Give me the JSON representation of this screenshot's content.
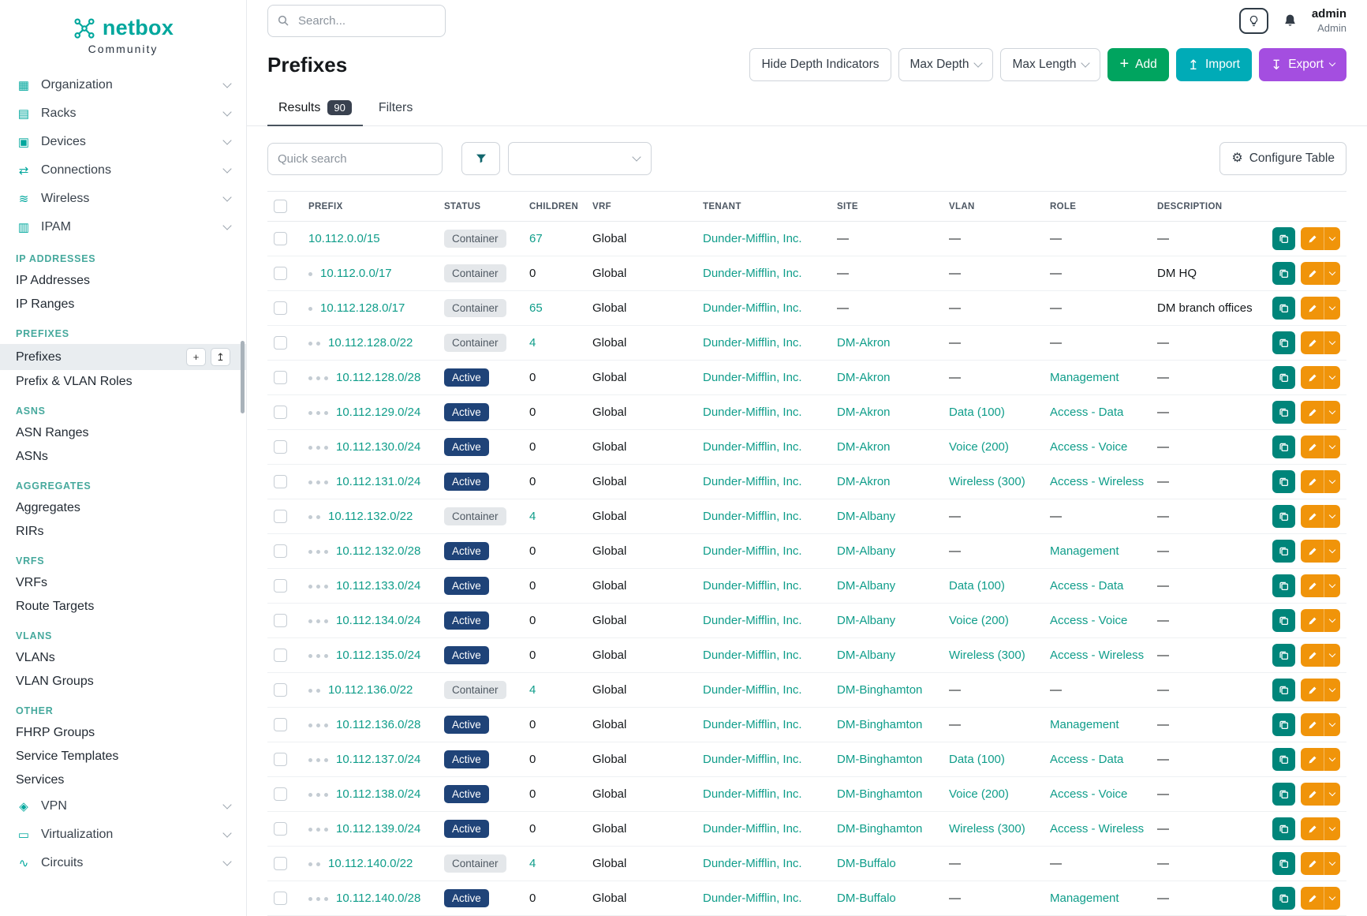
{
  "brand": {
    "name": "netbox",
    "tagline": "Community"
  },
  "topbar": {
    "search_placeholder": "Search...",
    "user_name": "admin",
    "user_role": "Admin"
  },
  "sidebar": {
    "menu": [
      {
        "type": "top",
        "label": "Organization",
        "icon": "building-icon"
      },
      {
        "type": "top",
        "label": "Racks",
        "icon": "rack-icon"
      },
      {
        "type": "top",
        "label": "Devices",
        "icon": "device-icon"
      },
      {
        "type": "top",
        "label": "Connections",
        "icon": "connection-icon"
      },
      {
        "type": "top",
        "label": "Wireless",
        "icon": "wireless-icon"
      },
      {
        "type": "top",
        "label": "IPAM",
        "icon": "ipam-icon"
      },
      {
        "type": "section",
        "label": "IP ADDRESSES"
      },
      {
        "type": "link",
        "label": "IP Addresses"
      },
      {
        "type": "link",
        "label": "IP Ranges"
      },
      {
        "type": "section",
        "label": "PREFIXES"
      },
      {
        "type": "link",
        "label": "Prefixes",
        "active": true
      },
      {
        "type": "link",
        "label": "Prefix & VLAN Roles"
      },
      {
        "type": "section",
        "label": "ASNS"
      },
      {
        "type": "link",
        "label": "ASN Ranges"
      },
      {
        "type": "link",
        "label": "ASNs"
      },
      {
        "type": "section",
        "label": "AGGREGATES"
      },
      {
        "type": "link",
        "label": "Aggregates"
      },
      {
        "type": "link",
        "label": "RIRs"
      },
      {
        "type": "section",
        "label": "VRFS"
      },
      {
        "type": "link",
        "label": "VRFs"
      },
      {
        "type": "link",
        "label": "Route Targets"
      },
      {
        "type": "section",
        "label": "VLANS"
      },
      {
        "type": "link",
        "label": "VLANs"
      },
      {
        "type": "link",
        "label": "VLAN Groups"
      },
      {
        "type": "section",
        "label": "OTHER"
      },
      {
        "type": "link",
        "label": "FHRP Groups"
      },
      {
        "type": "link",
        "label": "Service Templates"
      },
      {
        "type": "link",
        "label": "Services"
      },
      {
        "type": "top",
        "label": "VPN",
        "icon": "vpn-icon"
      },
      {
        "type": "top",
        "label": "Virtualization",
        "icon": "virtualization-icon"
      },
      {
        "type": "top",
        "label": "Circuits",
        "icon": "circuit-icon"
      }
    ]
  },
  "page": {
    "title": "Prefixes",
    "actions": {
      "hide_depth": "Hide Depth Indicators",
      "max_depth": "Max Depth",
      "max_length": "Max Length",
      "add": "Add",
      "import": "Import",
      "export": "Export"
    },
    "tabs": [
      {
        "label": "Results",
        "badge": "90"
      },
      {
        "label": "Filters"
      }
    ],
    "quick_search_placeholder": "Quick search",
    "configure_table": "Configure Table"
  },
  "table": {
    "columns": [
      "PREFIX",
      "STATUS",
      "CHILDREN",
      "VRF",
      "TENANT",
      "SITE",
      "VLAN",
      "ROLE",
      "DESCRIPTION"
    ],
    "rows": [
      {
        "depth": 0,
        "prefix": "10.112.0.0/15",
        "status": "Container",
        "children": "67",
        "vrf": "Global",
        "tenant": "Dunder-Mifflin, Inc.",
        "site": "—",
        "vlan": "—",
        "role": "—",
        "description": "—"
      },
      {
        "depth": 1,
        "prefix": "10.112.0.0/17",
        "status": "Container",
        "children": "0",
        "vrf": "Global",
        "tenant": "Dunder-Mifflin, Inc.",
        "site": "—",
        "vlan": "—",
        "role": "—",
        "description": "DM HQ"
      },
      {
        "depth": 1,
        "prefix": "10.112.128.0/17",
        "status": "Container",
        "children": "65",
        "vrf": "Global",
        "tenant": "Dunder-Mifflin, Inc.",
        "site": "—",
        "vlan": "—",
        "role": "—",
        "description": "DM branch offices"
      },
      {
        "depth": 2,
        "prefix": "10.112.128.0/22",
        "status": "Container",
        "children": "4",
        "vrf": "Global",
        "tenant": "Dunder-Mifflin, Inc.",
        "site": "DM-Akron",
        "vlan": "—",
        "role": "—",
        "description": "—"
      },
      {
        "depth": 3,
        "prefix": "10.112.128.0/28",
        "status": "Active",
        "children": "0",
        "vrf": "Global",
        "tenant": "Dunder-Mifflin, Inc.",
        "site": "DM-Akron",
        "vlan": "—",
        "role": "Management",
        "description": "—"
      },
      {
        "depth": 3,
        "prefix": "10.112.129.0/24",
        "status": "Active",
        "children": "0",
        "vrf": "Global",
        "tenant": "Dunder-Mifflin, Inc.",
        "site": "DM-Akron",
        "vlan": "Data (100)",
        "role": "Access - Data",
        "description": "—"
      },
      {
        "depth": 3,
        "prefix": "10.112.130.0/24",
        "status": "Active",
        "children": "0",
        "vrf": "Global",
        "tenant": "Dunder-Mifflin, Inc.",
        "site": "DM-Akron",
        "vlan": "Voice (200)",
        "role": "Access - Voice",
        "description": "—"
      },
      {
        "depth": 3,
        "prefix": "10.112.131.0/24",
        "status": "Active",
        "children": "0",
        "vrf": "Global",
        "tenant": "Dunder-Mifflin, Inc.",
        "site": "DM-Akron",
        "vlan": "Wireless (300)",
        "role": "Access - Wireless",
        "description": "—"
      },
      {
        "depth": 2,
        "prefix": "10.112.132.0/22",
        "status": "Container",
        "children": "4",
        "vrf": "Global",
        "tenant": "Dunder-Mifflin, Inc.",
        "site": "DM-Albany",
        "vlan": "—",
        "role": "—",
        "description": "—"
      },
      {
        "depth": 3,
        "prefix": "10.112.132.0/28",
        "status": "Active",
        "children": "0",
        "vrf": "Global",
        "tenant": "Dunder-Mifflin, Inc.",
        "site": "DM-Albany",
        "vlan": "—",
        "role": "Management",
        "description": "—"
      },
      {
        "depth": 3,
        "prefix": "10.112.133.0/24",
        "status": "Active",
        "children": "0",
        "vrf": "Global",
        "tenant": "Dunder-Mifflin, Inc.",
        "site": "DM-Albany",
        "vlan": "Data (100)",
        "role": "Access - Data",
        "description": "—"
      },
      {
        "depth": 3,
        "prefix": "10.112.134.0/24",
        "status": "Active",
        "children": "0",
        "vrf": "Global",
        "tenant": "Dunder-Mifflin, Inc.",
        "site": "DM-Albany",
        "vlan": "Voice (200)",
        "role": "Access - Voice",
        "description": "—"
      },
      {
        "depth": 3,
        "prefix": "10.112.135.0/24",
        "status": "Active",
        "children": "0",
        "vrf": "Global",
        "tenant": "Dunder-Mifflin, Inc.",
        "site": "DM-Albany",
        "vlan": "Wireless (300)",
        "role": "Access - Wireless",
        "description": "—"
      },
      {
        "depth": 2,
        "prefix": "10.112.136.0/22",
        "status": "Container",
        "children": "4",
        "vrf": "Global",
        "tenant": "Dunder-Mifflin, Inc.",
        "site": "DM-Binghamton",
        "vlan": "—",
        "role": "—",
        "description": "—"
      },
      {
        "depth": 3,
        "prefix": "10.112.136.0/28",
        "status": "Active",
        "children": "0",
        "vrf": "Global",
        "tenant": "Dunder-Mifflin, Inc.",
        "site": "DM-Binghamton",
        "vlan": "—",
        "role": "Management",
        "description": "—"
      },
      {
        "depth": 3,
        "prefix": "10.112.137.0/24",
        "status": "Active",
        "children": "0",
        "vrf": "Global",
        "tenant": "Dunder-Mifflin, Inc.",
        "site": "DM-Binghamton",
        "vlan": "Data (100)",
        "role": "Access - Data",
        "description": "—"
      },
      {
        "depth": 3,
        "prefix": "10.112.138.0/24",
        "status": "Active",
        "children": "0",
        "vrf": "Global",
        "tenant": "Dunder-Mifflin, Inc.",
        "site": "DM-Binghamton",
        "vlan": "Voice (200)",
        "role": "Access - Voice",
        "description": "—"
      },
      {
        "depth": 3,
        "prefix": "10.112.139.0/24",
        "status": "Active",
        "children": "0",
        "vrf": "Global",
        "tenant": "Dunder-Mifflin, Inc.",
        "site": "DM-Binghamton",
        "vlan": "Wireless (300)",
        "role": "Access - Wireless",
        "description": "—"
      },
      {
        "depth": 2,
        "prefix": "10.112.140.0/22",
        "status": "Container",
        "children": "4",
        "vrf": "Global",
        "tenant": "Dunder-Mifflin, Inc.",
        "site": "DM-Buffalo",
        "vlan": "—",
        "role": "—",
        "description": "—"
      },
      {
        "depth": 3,
        "prefix": "10.112.140.0/28",
        "status": "Active",
        "children": "0",
        "vrf": "Global",
        "tenant": "Dunder-Mifflin, Inc.",
        "site": "DM-Buffalo",
        "vlan": "—",
        "role": "Management",
        "description": "—"
      }
    ]
  },
  "colors": {
    "brand_teal": "#00a79d",
    "link_teal": "#0f9d8a",
    "add_green": "#00a45f",
    "import_teal": "#00abb7",
    "export_purple": "#a44ee0",
    "active_badge": "#1f4378",
    "container_badge_bg": "#e4e7ea",
    "copy_teal": "#00857a",
    "edit_orange": "#f0940a",
    "results_badge": "#39414f"
  }
}
